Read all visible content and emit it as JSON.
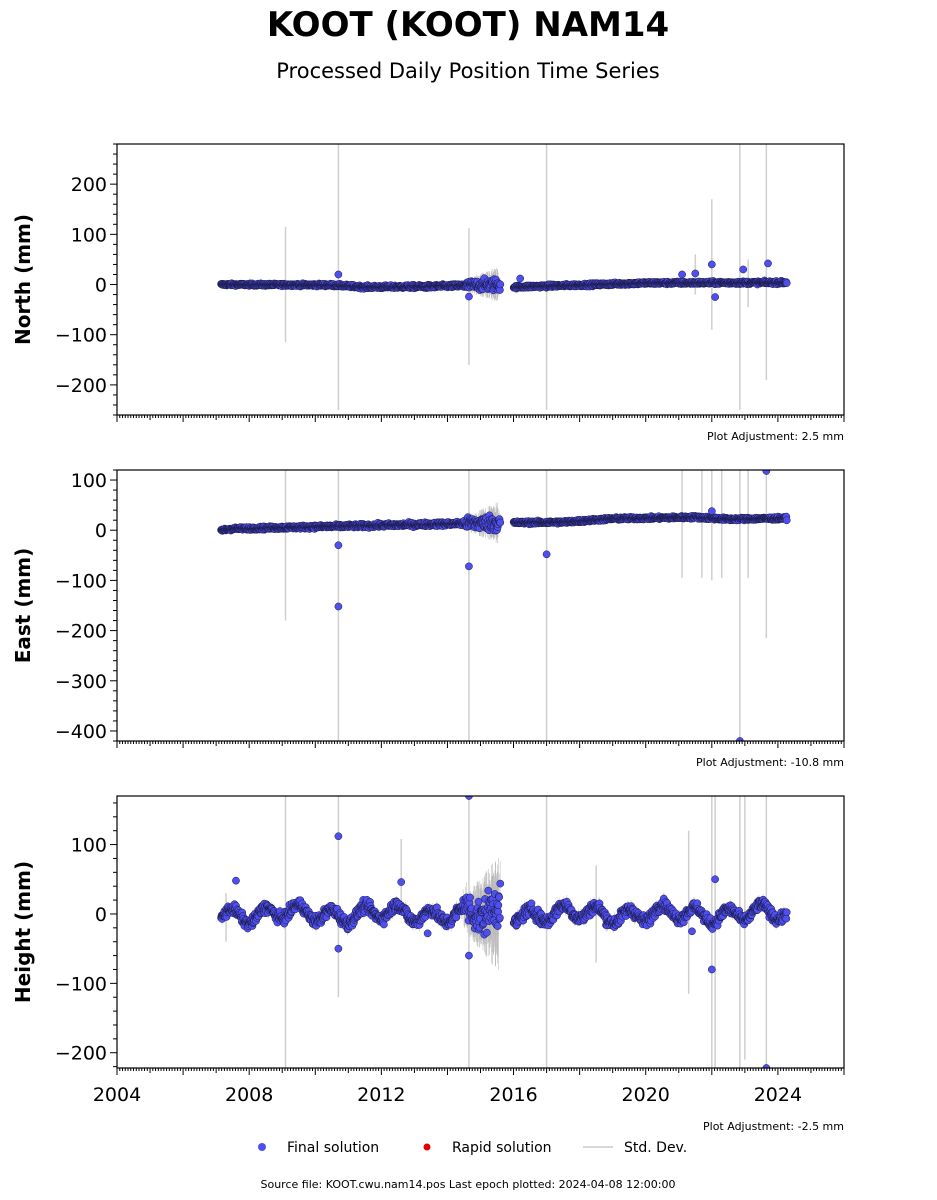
{
  "title": "KOOT (KOOT) NAM14",
  "subtitle": "Processed Daily Position Time Series",
  "source_line": "Source file: KOOT.cwu.nam14.pos  Last epoch plotted: 2024-04-08 12:00:00",
  "legend": [
    {
      "label": "Final solution",
      "color": "#4f4ff0"
    },
    {
      "label": "Rapid solution",
      "color": "#e00000"
    },
    {
      "label": "Std. Dev.",
      "color": "#cccccc"
    }
  ],
  "chart_data": [
    {
      "type": "scatter",
      "panel": "north",
      "ylabel": "North (mm)",
      "adjustment": "Plot Adjustment: 2.5 mm",
      "xlim": [
        2004.0,
        2026.0
      ],
      "ylim": [
        -260,
        280
      ],
      "yticks": [
        -200,
        -100,
        0,
        100,
        200
      ],
      "data_start": 2007.15,
      "data_end": 2024.27,
      "gap": [
        2015.6,
        2016.0
      ],
      "trend": [
        [
          2007.15,
          0
        ],
        [
          2010.5,
          -1
        ],
        [
          2011.5,
          -5
        ],
        [
          2013.5,
          -4
        ],
        [
          2015.5,
          0
        ],
        [
          2016.0,
          -5
        ],
        [
          2020.0,
          3
        ],
        [
          2024.27,
          4
        ]
      ],
      "noise": [
        [
          2007.15,
          1.5
        ],
        [
          2014.4,
          2.5
        ],
        [
          2014.6,
          6
        ],
        [
          2015.55,
          9
        ],
        [
          2016.0,
          2
        ],
        [
          2024.27,
          2
        ]
      ],
      "outliers": [
        [
          2010.7,
          20
        ],
        [
          2014.65,
          -24
        ],
        [
          2016.2,
          12
        ],
        [
          2021.1,
          20
        ],
        [
          2021.5,
          22
        ],
        [
          2022.0,
          40
        ],
        [
          2022.1,
          -25
        ],
        [
          2022.95,
          30
        ],
        [
          2023.7,
          42
        ]
      ],
      "error_bars": [
        [
          2009.1,
          -115,
          115
        ],
        [
          2010.7,
          -250,
          280
        ],
        [
          2014.65,
          -160,
          112
        ],
        [
          2017.0,
          -250,
          280
        ],
        [
          2021.5,
          -20,
          60
        ],
        [
          2022.0,
          -90,
          170
        ],
        [
          2022.85,
          -250,
          280
        ],
        [
          2023.1,
          -45,
          50
        ],
        [
          2023.65,
          -190,
          280
        ]
      ],
      "scatter_band": [
        2014.5,
        2015.55,
        30
      ]
    },
    {
      "type": "scatter",
      "panel": "east",
      "ylabel": "East (mm)",
      "adjustment": "Plot Adjustment: -10.8 mm",
      "xlim": [
        2004.0,
        2026.0
      ],
      "ylim": [
        -420,
        120
      ],
      "yticks": [
        -400,
        -300,
        -200,
        -100,
        0,
        100
      ],
      "data_start": 2007.15,
      "data_end": 2024.27,
      "gap": [
        2015.6,
        2016.0
      ],
      "trend": [
        [
          2007.15,
          0
        ],
        [
          2007.5,
          3
        ],
        [
          2015.5,
          15
        ],
        [
          2016.0,
          15
        ],
        [
          2017.5,
          16
        ],
        [
          2019.0,
          23
        ],
        [
          2021.5,
          26
        ],
        [
          2022.5,
          22
        ],
        [
          2024.27,
          24
        ]
      ],
      "noise": [
        [
          2007.15,
          2
        ],
        [
          2014.4,
          3
        ],
        [
          2014.6,
          8
        ],
        [
          2015.55,
          12
        ],
        [
          2016.0,
          2
        ],
        [
          2024.27,
          2
        ]
      ],
      "outliers": [
        [
          2010.7,
          -30
        ],
        [
          2010.7,
          -152
        ],
        [
          2014.65,
          -72
        ],
        [
          2017.0,
          -48
        ],
        [
          2022.0,
          38
        ],
        [
          2023.65,
          118
        ],
        [
          2022.85,
          -420
        ]
      ],
      "error_bars": [
        [
          2009.1,
          -180,
          120
        ],
        [
          2010.7,
          -420,
          120
        ],
        [
          2014.65,
          -420,
          120
        ],
        [
          2017.0,
          -420,
          120
        ],
        [
          2021.1,
          -95,
          120
        ],
        [
          2021.7,
          -95,
          120
        ],
        [
          2022.0,
          -100,
          120
        ],
        [
          2022.3,
          -95,
          120
        ],
        [
          2022.85,
          -420,
          120
        ],
        [
          2023.1,
          -95,
          120
        ],
        [
          2023.65,
          -215,
          120
        ]
      ],
      "scatter_band": [
        2014.5,
        2015.55,
        35
      ]
    },
    {
      "type": "scatter",
      "panel": "height",
      "ylabel": "Height (mm)",
      "adjustment": "Plot Adjustment: -2.5 mm",
      "xlim": [
        2004.0,
        2026.0
      ],
      "ylim": [
        -222,
        170
      ],
      "yticks": [
        -200,
        -100,
        0,
        100
      ],
      "xticks": [
        2004,
        2008,
        2012,
        2016,
        2020,
        2024
      ],
      "data_start": 2007.15,
      "data_end": 2024.27,
      "gap": [
        2015.6,
        2016.0
      ],
      "seasonal_amp": 10,
      "noise": [
        [
          2007.15,
          5
        ],
        [
          2014.4,
          6
        ],
        [
          2014.6,
          15
        ],
        [
          2015.55,
          22
        ],
        [
          2016.0,
          6
        ],
        [
          2024.27,
          5
        ]
      ],
      "outliers": [
        [
          2007.6,
          48
        ],
        [
          2010.7,
          112
        ],
        [
          2010.7,
          -50
        ],
        [
          2012.6,
          46
        ],
        [
          2013.4,
          -28
        ],
        [
          2014.65,
          -60
        ],
        [
          2014.65,
          170
        ],
        [
          2021.4,
          -25
        ],
        [
          2022.0,
          -80
        ],
        [
          2022.1,
          50
        ],
        [
          2023.65,
          -222
        ]
      ],
      "error_bars": [
        [
          2007.3,
          -40,
          30
        ],
        [
          2009.1,
          -222,
          170
        ],
        [
          2010.7,
          -120,
          170
        ],
        [
          2012.6,
          10,
          108
        ],
        [
          2014.65,
          -222,
          170
        ],
        [
          2017.0,
          -222,
          170
        ],
        [
          2018.5,
          -70,
          70
        ],
        [
          2021.3,
          -115,
          120
        ],
        [
          2022.0,
          -222,
          170
        ],
        [
          2022.1,
          -222,
          170
        ],
        [
          2022.85,
          -222,
          170
        ],
        [
          2023.0,
          -210,
          170
        ],
        [
          2023.65,
          -222,
          170
        ]
      ],
      "scatter_band": [
        2014.5,
        2015.55,
        70
      ]
    }
  ]
}
